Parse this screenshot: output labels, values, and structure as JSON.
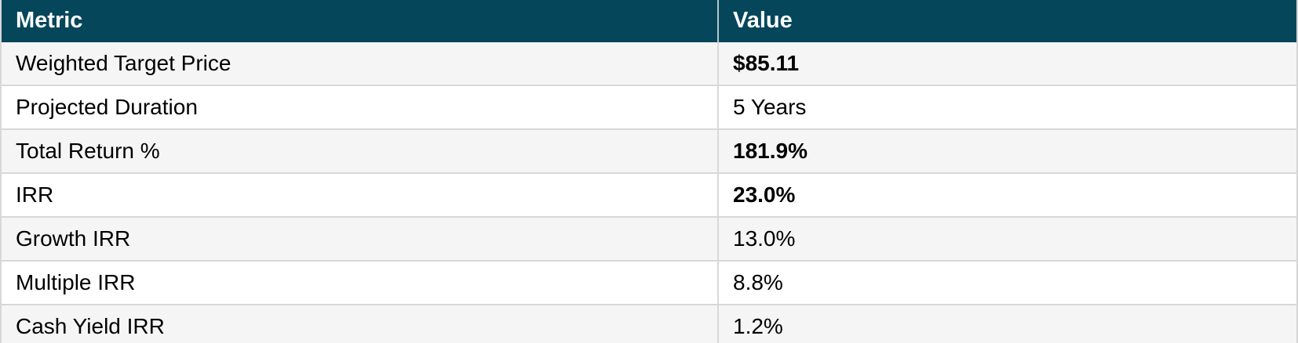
{
  "chart_data": {
    "type": "table",
    "columns": [
      "Metric",
      "Value"
    ],
    "rows": [
      {
        "metric": "Weighted Target Price",
        "value": "$85.11",
        "value_bold": true
      },
      {
        "metric": "Projected Duration",
        "value": "5 Years",
        "value_bold": false
      },
      {
        "metric": "Total Return %",
        "value": "181.9%",
        "value_bold": true
      },
      {
        "metric": "IRR",
        "value": "23.0%",
        "value_bold": true
      },
      {
        "metric": "Growth IRR",
        "value": "13.0%",
        "value_bold": false
      },
      {
        "metric": "Multiple IRR",
        "value": "8.8%",
        "value_bold": false
      },
      {
        "metric": "Cash Yield IRR",
        "value": "1.2%",
        "value_bold": false
      }
    ]
  },
  "colors": {
    "header_bg": "#05465A",
    "header_text": "#FFFFFF",
    "row_alt_bg": "#F5F5F5",
    "row_bg": "#FFFFFF",
    "border": "#D8D8D8",
    "text": "#000000"
  }
}
